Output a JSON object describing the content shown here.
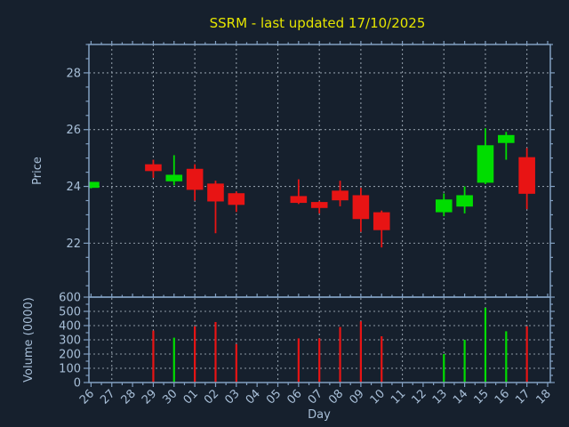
{
  "chart_data": {
    "type": "candlestick",
    "title": "SSRM - last updated 17/10/2025",
    "xlabel": "Day",
    "x_tick_labels": [
      "26",
      "27",
      "28",
      "29",
      "30",
      "01",
      "02",
      "03",
      "04",
      "05",
      "06",
      "07",
      "08",
      "09",
      "10",
      "11",
      "12",
      "13",
      "14",
      "15",
      "16",
      "17",
      "18"
    ],
    "legend": "none",
    "grid": "dashed, on both panels",
    "price_panel": {
      "ylabel": "Price",
      "yticks": [
        22,
        24,
        26,
        28
      ],
      "ylim": [
        20.1,
        29.0
      ]
    },
    "volume_panel": {
      "ylabel": "Volume (0000)",
      "yticks": [
        0,
        100,
        200,
        300,
        400,
        500,
        600
      ],
      "ylim": [
        0,
        600
      ]
    },
    "candles": [
      {
        "day": "26",
        "open": 23.95,
        "high": 24.16,
        "low": 23.93,
        "close": 24.16,
        "volume": 0
      },
      {
        "day": "29",
        "open": 24.78,
        "high": 24.94,
        "low": 24.3,
        "close": 24.54,
        "volume": 365
      },
      {
        "day": "30",
        "open": 24.18,
        "high": 25.1,
        "low": 24.04,
        "close": 24.41,
        "volume": 315
      },
      {
        "day": "01",
        "open": 24.62,
        "high": 24.78,
        "low": 23.5,
        "close": 23.88,
        "volume": 395
      },
      {
        "day": "02",
        "open": 24.1,
        "high": 24.2,
        "low": 22.35,
        "close": 23.47,
        "volume": 425
      },
      {
        "day": "03",
        "open": 23.76,
        "high": 23.82,
        "low": 23.1,
        "close": 23.35,
        "volume": 270
      },
      {
        "day": "06",
        "open": 23.66,
        "high": 24.25,
        "low": 23.38,
        "close": 23.42,
        "volume": 310
      },
      {
        "day": "07",
        "open": 23.45,
        "high": 23.48,
        "low": 23.05,
        "close": 23.24,
        "volume": 310
      },
      {
        "day": "08",
        "open": 23.85,
        "high": 24.2,
        "low": 23.3,
        "close": 23.51,
        "volume": 390
      },
      {
        "day": "09",
        "open": 23.69,
        "high": 23.95,
        "low": 22.4,
        "close": 22.85,
        "volume": 430
      },
      {
        "day": "10",
        "open": 23.09,
        "high": 23.15,
        "low": 21.85,
        "close": 22.46,
        "volume": 325
      },
      {
        "day": "13",
        "open": 23.09,
        "high": 23.75,
        "low": 22.95,
        "close": 23.54,
        "volume": 200
      },
      {
        "day": "14",
        "open": 23.29,
        "high": 24.0,
        "low": 23.05,
        "close": 23.69,
        "volume": 300
      },
      {
        "day": "15",
        "open": 24.13,
        "high": 26.05,
        "low": 24.08,
        "close": 25.45,
        "volume": 525
      },
      {
        "day": "16",
        "open": 25.53,
        "high": 25.92,
        "low": 24.94,
        "close": 25.81,
        "volume": 360
      },
      {
        "day": "17",
        "open": 25.03,
        "high": 25.35,
        "low": 23.2,
        "close": 23.74,
        "volume": 395
      }
    ],
    "style": {
      "background": "#16202d",
      "up_color": "#00dd00",
      "down_color": "#e81414",
      "title_color": "#e5e500",
      "axis_color": "#82a0c2",
      "tick_label_color": "#a8bfd8",
      "grid_color": "#aab6c2"
    }
  }
}
